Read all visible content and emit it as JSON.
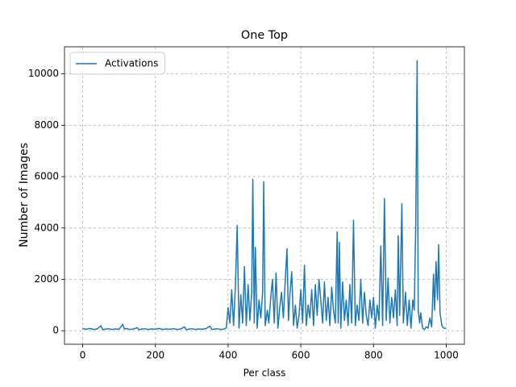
{
  "chart_data": {
    "type": "line",
    "title": "One Top",
    "x_label": "Per class",
    "y_label": "Number of Images",
    "grid": true,
    "legend": "upper left",
    "xlim": [
      -50,
      1050
    ],
    "ylim": [
      -526,
      11056
    ],
    "xticks": [
      0,
      200,
      400,
      600,
      800,
      1000
    ],
    "yticks": [
      0,
      2000,
      4000,
      6000,
      8000,
      10000
    ],
    "x": [
      0,
      10,
      20,
      30,
      40,
      50,
      55,
      60,
      70,
      80,
      90,
      100,
      110,
      115,
      120,
      130,
      140,
      150,
      155,
      160,
      170,
      180,
      190,
      200,
      210,
      220,
      230,
      240,
      250,
      260,
      270,
      280,
      285,
      290,
      300,
      310,
      320,
      330,
      340,
      350,
      355,
      360,
      370,
      380,
      390,
      395,
      400,
      405,
      410,
      415,
      420,
      425,
      430,
      435,
      440,
      445,
      450,
      455,
      460,
      465,
      468,
      472,
      475,
      480,
      485,
      490,
      495,
      498,
      502,
      508,
      512,
      518,
      522,
      527,
      532,
      537,
      542,
      547,
      552,
      557,
      562,
      566,
      570,
      575,
      580,
      585,
      590,
      595,
      600,
      605,
      610,
      615,
      620,
      625,
      630,
      635,
      640,
      645,
      650,
      655,
      660,
      665,
      670,
      675,
      680,
      685,
      690,
      695,
      700,
      703,
      706,
      710,
      715,
      720,
      725,
      730,
      735,
      740,
      745,
      750,
      755,
      760,
      765,
      770,
      775,
      780,
      785,
      790,
      795,
      800,
      805,
      810,
      815,
      820,
      825,
      830,
      835,
      840,
      845,
      850,
      855,
      860,
      865,
      868,
      872,
      878,
      882,
      888,
      893,
      898,
      903,
      908,
      912,
      916,
      920,
      923,
      927,
      930,
      935,
      940,
      945,
      950,
      955,
      960,
      965,
      968,
      972,
      976,
      979,
      983,
      988,
      993,
      999
    ],
    "series": [
      {
        "name": "Activations",
        "color": "#1f77b4",
        "values": [
          80,
          60,
          90,
          50,
          70,
          200,
          40,
          60,
          80,
          50,
          70,
          60,
          250,
          60,
          90,
          50,
          70,
          120,
          40,
          60,
          80,
          50,
          70,
          60,
          90,
          50,
          70,
          60,
          80,
          50,
          70,
          150,
          40,
          60,
          80,
          50,
          70,
          60,
          90,
          180,
          50,
          60,
          80,
          50,
          70,
          120,
          900,
          300,
          1600,
          200,
          1700,
          4100,
          100,
          1400,
          300,
          2500,
          200,
          1800,
          400,
          1500,
          5900,
          300,
          3250,
          100,
          1200,
          500,
          1500,
          5800,
          200,
          800,
          300,
          1400,
          2000,
          300,
          2250,
          100,
          900,
          1500,
          500,
          1900,
          3200,
          400,
          1400,
          2300,
          200,
          1000,
          100,
          600,
          1600,
          300,
          2550,
          200,
          1000,
          500,
          1600,
          200,
          1800,
          600,
          2000,
          1200,
          300,
          1900,
          400,
          1300,
          200,
          1700,
          800,
          300,
          3850,
          300,
          3450,
          100,
          1900,
          400,
          1200,
          200,
          1800,
          300,
          4300,
          200,
          1000,
          400,
          2000,
          300,
          1500,
          600,
          200,
          1200,
          500,
          1300,
          100,
          1000,
          400,
          3300,
          200,
          5150,
          400,
          2050,
          300,
          1300,
          500,
          1600,
          200,
          3700,
          600,
          4950,
          300,
          1500,
          200,
          1200,
          100,
          1200,
          800,
          4000,
          10520,
          800,
          300,
          700,
          100,
          50,
          150,
          100,
          500,
          150,
          2200,
          800,
          2700,
          1200,
          3350,
          700,
          200,
          100,
          100
        ]
      }
    ]
  }
}
